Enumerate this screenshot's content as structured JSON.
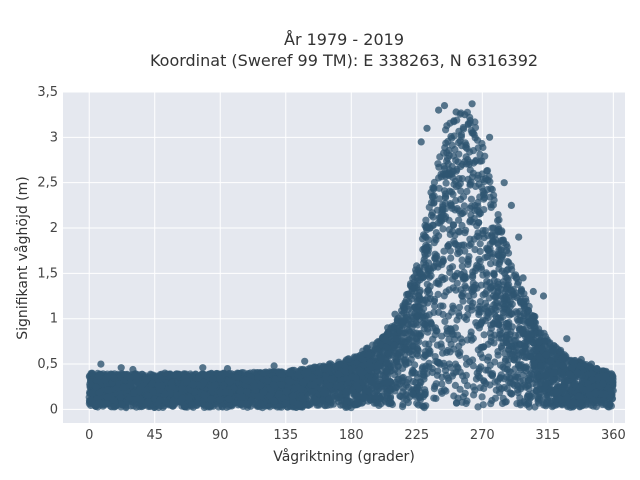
{
  "chart_data": {
    "type": "scatter",
    "title": "År 1979 - 2019",
    "subtitle": "Koordinat (Sweref 99 TM): E 338263, N 6316392",
    "xlabel": "Vågriktning (grader)",
    "ylabel": "Signifikant våghöjd (m)",
    "xlim": [
      -18,
      368
    ],
    "ylim": [
      -0.15,
      3.5
    ],
    "xticks": [
      0,
      45,
      90,
      135,
      180,
      225,
      270,
      315,
      360
    ],
    "xtick_labels": [
      "0",
      "45",
      "90",
      "135",
      "180",
      "225",
      "270",
      "315",
      "360"
    ],
    "yticks": [
      0,
      0.5,
      1,
      1.5,
      2,
      2.5,
      3,
      3.5
    ],
    "ytick_labels": [
      "0",
      "0,5",
      "1",
      "1,5",
      "2",
      "2,5",
      "3",
      "3,5"
    ],
    "grid": true,
    "marker_color": "#2f5571",
    "background_color": "#e5e8ef",
    "envelope": {
      "direction": [
        0,
        45,
        90,
        135,
        160,
        180,
        200,
        215,
        225,
        235,
        245,
        255,
        262,
        270,
        280,
        290,
        300,
        315,
        330,
        345,
        360
      ],
      "wave_height_max": [
        0.38,
        0.37,
        0.38,
        0.4,
        0.46,
        0.55,
        0.75,
        1.1,
        1.6,
        2.4,
        3.1,
        3.25,
        3.3,
        2.9,
        2.2,
        1.6,
        1.2,
        0.75,
        0.55,
        0.45,
        0.38
      ]
    },
    "outliers": {
      "x": [
        8,
        22,
        30,
        52,
        78,
        95,
        127,
        148,
        205,
        210,
        228,
        232,
        240,
        244,
        252,
        258,
        263,
        275,
        285,
        290,
        295,
        298,
        305,
        312,
        328,
        338,
        345
      ],
      "y": [
        0.5,
        0.46,
        0.44,
        0.4,
        0.46,
        0.45,
        0.48,
        0.53,
        0.9,
        1.05,
        2.95,
        3.1,
        3.3,
        3.35,
        3.28,
        3.25,
        3.37,
        3.0,
        2.5,
        2.25,
        1.9,
        1.45,
        1.3,
        1.25,
        0.78,
        0.55,
        0.5
      ]
    }
  }
}
